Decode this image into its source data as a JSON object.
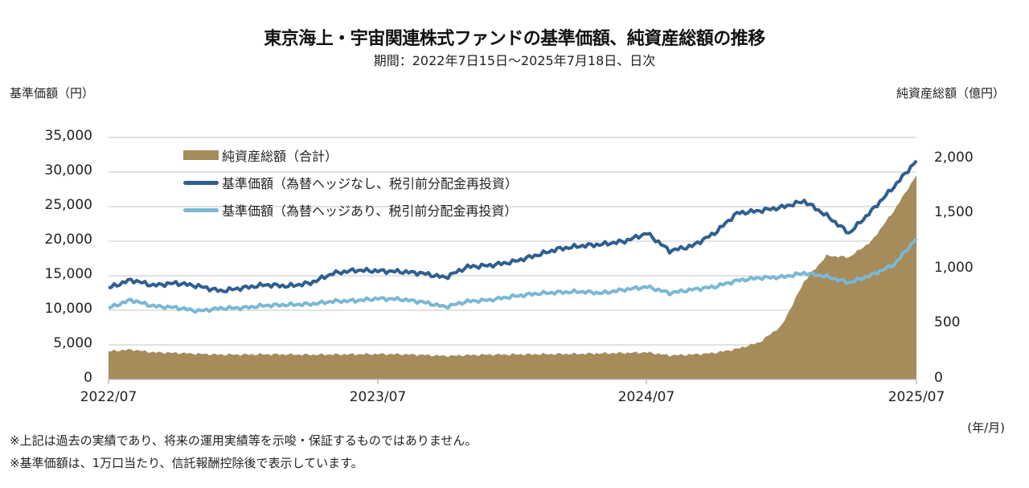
{
  "header": {
    "title": "東京海上・宇宙関連株式ファンドの基準価額、純資産総額の推移",
    "subtitle": "期間：2022年7日15日～2025年7月18日、日次"
  },
  "axes": {
    "left_title": "基準価額（円）",
    "right_title": "純資産総額（億円）",
    "x_unit": "(年/月)",
    "left_ticks": [
      "35,000",
      "30,000",
      "25,000",
      "20,000",
      "15,000",
      "10,000",
      "5,000",
      "0"
    ],
    "right_ticks": [
      "2,000",
      "1,500",
      "1,000",
      "500",
      "0"
    ],
    "x_ticks": [
      "2022/07",
      "2023/07",
      "2024/07",
      "2025/07"
    ]
  },
  "legend": [
    {
      "label": "純資産総額（合計）",
      "kind": "area",
      "color": "#A68B5B"
    },
    {
      "label": "基準価額（為替ヘッジなし、税引前分配金再投資）",
      "kind": "line",
      "color": "#2F5F90"
    },
    {
      "label": "基準価額（為替ヘッジあり、税引前分配金再投資）",
      "kind": "line",
      "color": "#7AB8D3"
    }
  ],
  "footnotes": [
    "※上記は過去の実績であり、将来の運用実績等を示唆・保証するものではありません。",
    "※基準価額は、1万口当たり、信託報酬控除後で表示しています。"
  ],
  "colors": {
    "area": "#A68B5B",
    "nav_unhedged": "#2F5F90",
    "nav_hedged": "#7AB8D3",
    "grid": "#D9D9D9",
    "axis": "#BFBFBF"
  },
  "chart_data": {
    "type": "line",
    "title": "東京海上・宇宙関連株式ファンドの基準価額、純資産総額の推移",
    "subtitle": "期間：2022年7日15日～2025年7月18日、日次",
    "xlabel": "(年/月)",
    "ylabel": "基準価額（円）",
    "y2label": "純資産総額（億円）",
    "ylim": [
      0,
      35000
    ],
    "y2lim": [
      0,
      2188
    ],
    "y_ticks": [
      0,
      5000,
      10000,
      15000,
      20000,
      25000,
      30000,
      35000
    ],
    "y2_ticks": [
      0,
      500,
      1000,
      1500,
      2000
    ],
    "x_ticks": [
      "2022/07",
      "2023/07",
      "2024/07",
      "2025/07"
    ],
    "grid": true,
    "legend_position": "upper-left inside",
    "x": [
      "2022/07",
      "2022/08",
      "2022/09",
      "2022/10",
      "2022/11",
      "2022/12",
      "2023/01",
      "2023/02",
      "2023/03",
      "2023/04",
      "2023/05",
      "2023/06",
      "2023/07",
      "2023/08",
      "2023/09",
      "2023/10",
      "2023/11",
      "2023/12",
      "2024/01",
      "2024/02",
      "2024/03",
      "2024/04",
      "2024/05",
      "2024/06",
      "2024/07",
      "2024/08",
      "2024/09",
      "2024/10",
      "2024/11",
      "2024/12",
      "2025/01",
      "2025/02",
      "2025/03",
      "2025/04",
      "2025/05",
      "2025/06",
      "2025/07"
    ],
    "series": [
      {
        "name": "純資産総額（合計）",
        "type": "area",
        "axis": "right",
        "unit": "億円",
        "values": [
          255,
          270,
          245,
          240,
          232,
          225,
          225,
          228,
          226,
          224,
          226,
          228,
          230,
          228,
          222,
          212,
          220,
          225,
          226,
          228,
          230,
          232,
          236,
          240,
          245,
          218,
          225,
          240,
          276,
          335,
          487,
          887,
          1120,
          1105,
          1250,
          1527,
          1847
        ]
      },
      {
        "name": "基準価額（為替ヘッジなし、税引前分配金再投資）",
        "type": "line",
        "axis": "left",
        "unit": "円",
        "values": [
          13250,
          14400,
          13600,
          13950,
          13500,
          12800,
          13250,
          13700,
          13500,
          13950,
          15350,
          15800,
          15700,
          15600,
          15350,
          14750,
          16300,
          16500,
          17000,
          17900,
          18850,
          19300,
          19550,
          20000,
          21150,
          18600,
          19300,
          21150,
          24050,
          24400,
          24900,
          25800,
          23700,
          21150,
          24400,
          27900,
          31650
        ]
      },
      {
        "name": "基準価額（為替ヘッジあり、税引前分配金再投資）",
        "type": "line",
        "axis": "left",
        "unit": "円",
        "values": [
          10350,
          11500,
          10600,
          10400,
          9900,
          10300,
          10350,
          10700,
          10800,
          10900,
          11300,
          11400,
          11700,
          11600,
          11200,
          10500,
          11300,
          11500,
          12000,
          12400,
          12600,
          12700,
          12500,
          13000,
          13400,
          12500,
          13000,
          13400,
          14300,
          14700,
          14800,
          15400,
          14900,
          14000,
          15100,
          16600,
          20400
        ]
      }
    ]
  }
}
